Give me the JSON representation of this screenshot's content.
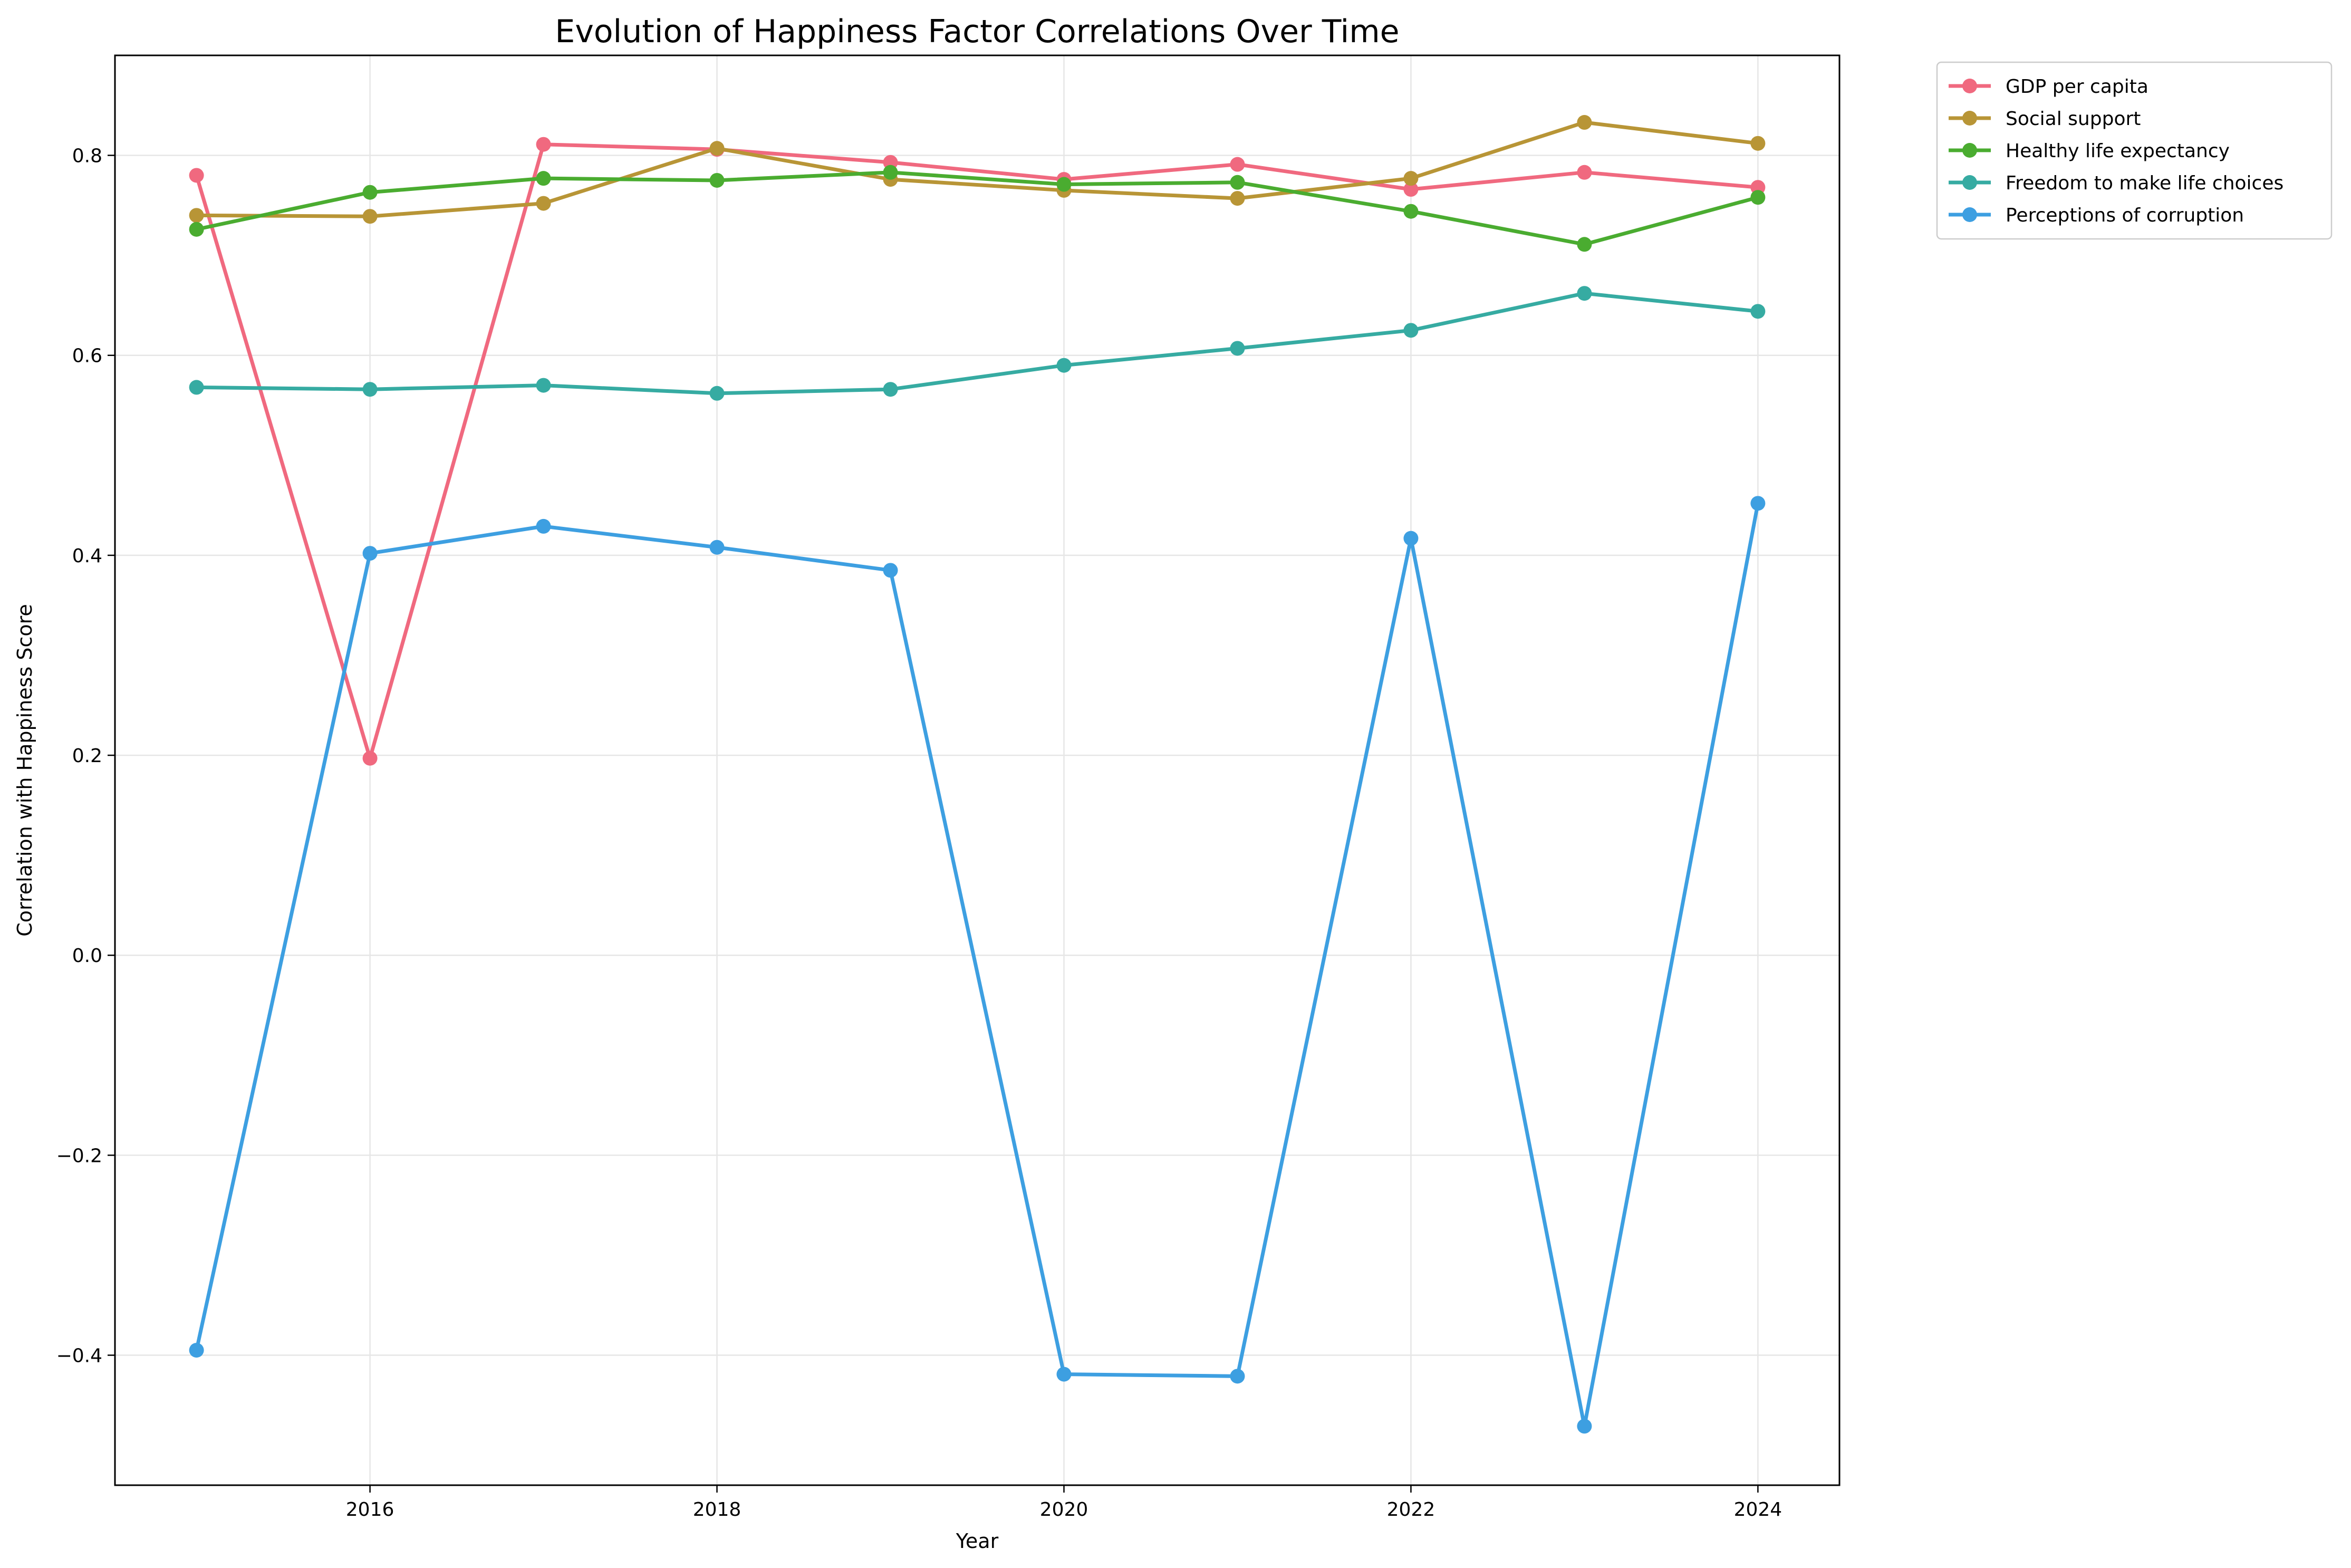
{
  "chart_data": {
    "type": "line",
    "title": "Evolution of Happiness Factor Correlations Over Time",
    "xlabel": "Year",
    "ylabel": "Correlation with Happiness Score",
    "x": [
      2015,
      2016,
      2017,
      2018,
      2019,
      2020,
      2021,
      2022,
      2023,
      2024
    ],
    "xlim": [
      2014.53,
      2024.47
    ],
    "ylim": [
      -0.53,
      0.9
    ],
    "xticks": [
      2016,
      2018,
      2020,
      2022,
      2024
    ],
    "yticks": [
      -0.4,
      -0.2,
      0.0,
      0.2,
      0.4,
      0.6,
      0.8
    ],
    "ytick_labels": [
      "−0.4",
      "−0.2",
      "0.0",
      "0.2",
      "0.4",
      "0.6",
      "0.8"
    ],
    "grid": true,
    "legend_position": "outside-top-right",
    "series": [
      {
        "name": "GDP per capita",
        "color": "#f0697f",
        "values": [
          0.78,
          0.197,
          0.811,
          0.806,
          0.793,
          0.776,
          0.791,
          0.766,
          0.783,
          0.768
        ]
      },
      {
        "name": "Social support",
        "color": "#b89536",
        "values": [
          0.74,
          0.739,
          0.752,
          0.807,
          0.776,
          0.765,
          0.757,
          0.777,
          0.833,
          0.812
        ]
      },
      {
        "name": "Healthy life expectancy",
        "color": "#4aac30",
        "values": [
          0.726,
          0.763,
          0.777,
          0.775,
          0.783,
          0.771,
          0.773,
          0.744,
          0.711,
          0.758
        ]
      },
      {
        "name": "Freedom to make life choices",
        "color": "#36aba2",
        "values": [
          0.568,
          0.566,
          0.57,
          0.562,
          0.566,
          0.59,
          0.607,
          0.625,
          0.662,
          0.644
        ]
      },
      {
        "name": "Perceptions of corruption",
        "color": "#3d9fe1",
        "values": [
          -0.395,
          0.402,
          0.429,
          0.408,
          0.385,
          -0.419,
          -0.421,
          0.417,
          -0.471,
          0.452
        ]
      }
    ]
  }
}
